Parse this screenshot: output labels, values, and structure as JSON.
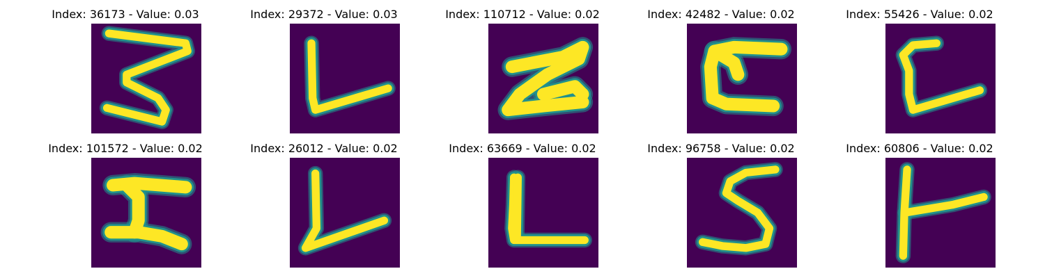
{
  "colors": {
    "background": "#440154",
    "stroke_mid": "#21918c",
    "stroke_core": "#fde725"
  },
  "panels": [
    {
      "title": "Index: 36173 - Value: 0.03",
      "glyph": "z-like-3"
    },
    {
      "title": "Index: 29372 - Value: 0.03",
      "glyph": "l-angled"
    },
    {
      "title": "Index: 110712 - Value: 0.02",
      "glyph": "z-thick"
    },
    {
      "title": "Index: 42482 - Value: 0.02",
      "glyph": "c-square"
    },
    {
      "title": "Index: 55426 - Value: 0.02",
      "glyph": "l-hook"
    },
    {
      "title": "Index: 101572 - Value: 0.02",
      "glyph": "z-block"
    },
    {
      "title": "Index: 26012 - Value: 0.02",
      "glyph": "l-angled-2"
    },
    {
      "title": "Index: 63669 - Value: 0.02",
      "glyph": "l-flat"
    },
    {
      "title": "Index: 96758 - Value: 0.02",
      "glyph": "s-curve"
    },
    {
      "title": "Index: 60806 - Value: 0.02",
      "glyph": "t-side"
    }
  ]
}
